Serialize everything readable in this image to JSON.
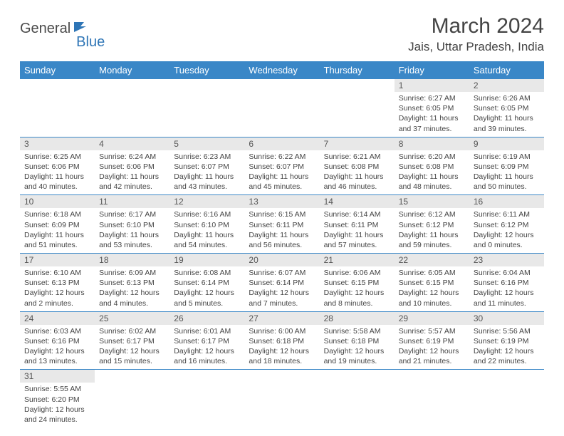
{
  "logo": {
    "part1": "General",
    "part2": "Blue"
  },
  "title": "March 2024",
  "location": "Jais, Uttar Pradesh, India",
  "weekdays": [
    "Sunday",
    "Monday",
    "Tuesday",
    "Wednesday",
    "Thursday",
    "Friday",
    "Saturday"
  ],
  "header_bg": "#3a87c7",
  "header_fg": "#ffffff",
  "daynum_bg": "#e8e8e8",
  "border_color": "#3a87c7",
  "weeks": [
    [
      null,
      null,
      null,
      null,
      null,
      {
        "n": "1",
        "sr": "Sunrise: 6:27 AM",
        "ss": "Sunset: 6:05 PM",
        "dl": "Daylight: 11 hours and 37 minutes."
      },
      {
        "n": "2",
        "sr": "Sunrise: 6:26 AM",
        "ss": "Sunset: 6:05 PM",
        "dl": "Daylight: 11 hours and 39 minutes."
      }
    ],
    [
      {
        "n": "3",
        "sr": "Sunrise: 6:25 AM",
        "ss": "Sunset: 6:06 PM",
        "dl": "Daylight: 11 hours and 40 minutes."
      },
      {
        "n": "4",
        "sr": "Sunrise: 6:24 AM",
        "ss": "Sunset: 6:06 PM",
        "dl": "Daylight: 11 hours and 42 minutes."
      },
      {
        "n": "5",
        "sr": "Sunrise: 6:23 AM",
        "ss": "Sunset: 6:07 PM",
        "dl": "Daylight: 11 hours and 43 minutes."
      },
      {
        "n": "6",
        "sr": "Sunrise: 6:22 AM",
        "ss": "Sunset: 6:07 PM",
        "dl": "Daylight: 11 hours and 45 minutes."
      },
      {
        "n": "7",
        "sr": "Sunrise: 6:21 AM",
        "ss": "Sunset: 6:08 PM",
        "dl": "Daylight: 11 hours and 46 minutes."
      },
      {
        "n": "8",
        "sr": "Sunrise: 6:20 AM",
        "ss": "Sunset: 6:08 PM",
        "dl": "Daylight: 11 hours and 48 minutes."
      },
      {
        "n": "9",
        "sr": "Sunrise: 6:19 AM",
        "ss": "Sunset: 6:09 PM",
        "dl": "Daylight: 11 hours and 50 minutes."
      }
    ],
    [
      {
        "n": "10",
        "sr": "Sunrise: 6:18 AM",
        "ss": "Sunset: 6:09 PM",
        "dl": "Daylight: 11 hours and 51 minutes."
      },
      {
        "n": "11",
        "sr": "Sunrise: 6:17 AM",
        "ss": "Sunset: 6:10 PM",
        "dl": "Daylight: 11 hours and 53 minutes."
      },
      {
        "n": "12",
        "sr": "Sunrise: 6:16 AM",
        "ss": "Sunset: 6:10 PM",
        "dl": "Daylight: 11 hours and 54 minutes."
      },
      {
        "n": "13",
        "sr": "Sunrise: 6:15 AM",
        "ss": "Sunset: 6:11 PM",
        "dl": "Daylight: 11 hours and 56 minutes."
      },
      {
        "n": "14",
        "sr": "Sunrise: 6:14 AM",
        "ss": "Sunset: 6:11 PM",
        "dl": "Daylight: 11 hours and 57 minutes."
      },
      {
        "n": "15",
        "sr": "Sunrise: 6:12 AM",
        "ss": "Sunset: 6:12 PM",
        "dl": "Daylight: 11 hours and 59 minutes."
      },
      {
        "n": "16",
        "sr": "Sunrise: 6:11 AM",
        "ss": "Sunset: 6:12 PM",
        "dl": "Daylight: 12 hours and 0 minutes."
      }
    ],
    [
      {
        "n": "17",
        "sr": "Sunrise: 6:10 AM",
        "ss": "Sunset: 6:13 PM",
        "dl": "Daylight: 12 hours and 2 minutes."
      },
      {
        "n": "18",
        "sr": "Sunrise: 6:09 AM",
        "ss": "Sunset: 6:13 PM",
        "dl": "Daylight: 12 hours and 4 minutes."
      },
      {
        "n": "19",
        "sr": "Sunrise: 6:08 AM",
        "ss": "Sunset: 6:14 PM",
        "dl": "Daylight: 12 hours and 5 minutes."
      },
      {
        "n": "20",
        "sr": "Sunrise: 6:07 AM",
        "ss": "Sunset: 6:14 PM",
        "dl": "Daylight: 12 hours and 7 minutes."
      },
      {
        "n": "21",
        "sr": "Sunrise: 6:06 AM",
        "ss": "Sunset: 6:15 PM",
        "dl": "Daylight: 12 hours and 8 minutes."
      },
      {
        "n": "22",
        "sr": "Sunrise: 6:05 AM",
        "ss": "Sunset: 6:15 PM",
        "dl": "Daylight: 12 hours and 10 minutes."
      },
      {
        "n": "23",
        "sr": "Sunrise: 6:04 AM",
        "ss": "Sunset: 6:16 PM",
        "dl": "Daylight: 12 hours and 11 minutes."
      }
    ],
    [
      {
        "n": "24",
        "sr": "Sunrise: 6:03 AM",
        "ss": "Sunset: 6:16 PM",
        "dl": "Daylight: 12 hours and 13 minutes."
      },
      {
        "n": "25",
        "sr": "Sunrise: 6:02 AM",
        "ss": "Sunset: 6:17 PM",
        "dl": "Daylight: 12 hours and 15 minutes."
      },
      {
        "n": "26",
        "sr": "Sunrise: 6:01 AM",
        "ss": "Sunset: 6:17 PM",
        "dl": "Daylight: 12 hours and 16 minutes."
      },
      {
        "n": "27",
        "sr": "Sunrise: 6:00 AM",
        "ss": "Sunset: 6:18 PM",
        "dl": "Daylight: 12 hours and 18 minutes."
      },
      {
        "n": "28",
        "sr": "Sunrise: 5:58 AM",
        "ss": "Sunset: 6:18 PM",
        "dl": "Daylight: 12 hours and 19 minutes."
      },
      {
        "n": "29",
        "sr": "Sunrise: 5:57 AM",
        "ss": "Sunset: 6:19 PM",
        "dl": "Daylight: 12 hours and 21 minutes."
      },
      {
        "n": "30",
        "sr": "Sunrise: 5:56 AM",
        "ss": "Sunset: 6:19 PM",
        "dl": "Daylight: 12 hours and 22 minutes."
      }
    ],
    [
      {
        "n": "31",
        "sr": "Sunrise: 5:55 AM",
        "ss": "Sunset: 6:20 PM",
        "dl": "Daylight: 12 hours and 24 minutes."
      },
      null,
      null,
      null,
      null,
      null,
      null
    ]
  ]
}
